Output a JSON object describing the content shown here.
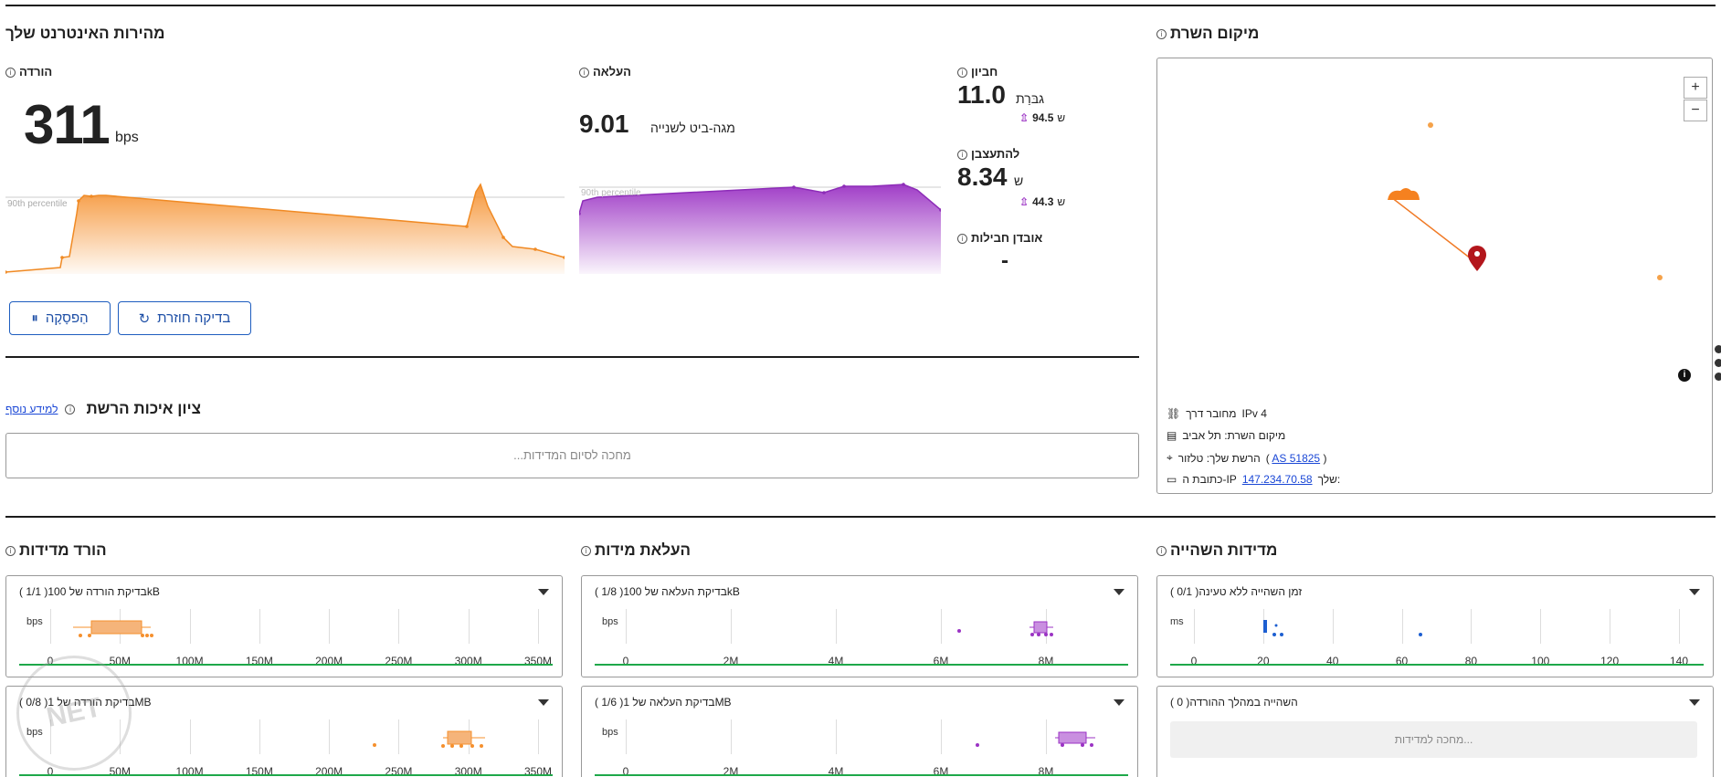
{
  "speed": {
    "title": "מהירות האינטרנט שלך",
    "download": {
      "label": "הורדה",
      "value": "311",
      "unit": "bps"
    },
    "upload": {
      "label": "העלאה",
      "value": "9.01",
      "unit": "מגה-ביט לשנייה"
    },
    "latency": {
      "label": "חביון",
      "value": "11.0",
      "unit": "גבּרַת",
      "loaded_value": "94.5",
      "loaded_unit": "ש"
    },
    "jitter": {
      "label": "להתעצבן",
      "value": "8.34",
      "unit": "ש",
      "loaded_value": "44.3",
      "loaded_unit": "ש"
    },
    "packet_loss": {
      "label": "אובדן חבילות",
      "value": "-"
    },
    "percentile_label": "90th percentile",
    "buttons": {
      "pause": "הַפסָקָה",
      "retest": "בדיקה חוזרת"
    }
  },
  "network_quality": {
    "title": "ציון איכות הרשת",
    "more_info": "למידע נוסף",
    "waiting": "...מחכה לסיום המדידות"
  },
  "server": {
    "title": "מיקום השרת",
    "zoom_in": "+",
    "zoom_out": "−",
    "connected_via": "מחובר דרך",
    "ip_version": "IPv 4",
    "server_location": "מיקום השרת: תל אביב",
    "network_label": "הרשת שלך: טלזור",
    "network_as": "AS 51825",
    "ip_label_pre": "כתובת ה-IP",
    "ip_label_post": "שלך:",
    "ip_value": "147.234.70.58"
  },
  "sections": {
    "download_measurements": "הורד מדידות",
    "upload_measurements": "העלאת מידות",
    "latency_measurements": "מדידות השהייה"
  },
  "cards": {
    "dl100k": {
      "title": "( 1/1 )בדיקת הורדה של 100kB",
      "unit": "bps",
      "ticks": [
        "0",
        "50M",
        "100M",
        "150M",
        "200M",
        "250M",
        "300M",
        "350M"
      ]
    },
    "dl1m": {
      "title": "( 0/8 )בדיקת הורדה של 1MB",
      "unit": "bps",
      "ticks": [
        "0",
        "50M",
        "100M",
        "150M",
        "200M",
        "250M",
        "300M",
        "350M"
      ]
    },
    "ul100k": {
      "title": "( 1/8 )בדיקת העלאה של 100kB",
      "unit": "bps",
      "ticks": [
        "0",
        "2M",
        "4M",
        "6M",
        "8M"
      ]
    },
    "ul1m": {
      "title": "( 1/6 )בדיקת העלאה של 1MB",
      "unit": "bps",
      "ticks": [
        "0",
        "2M",
        "4M",
        "6M",
        "8M"
      ]
    },
    "lat_unloaded": {
      "title": "( 0/1 )זמן השהייה ללא טעינה",
      "unit": "ms",
      "ticks": [
        "0",
        "20",
        "40",
        "60",
        "80",
        "100",
        "120",
        "140"
      ]
    },
    "lat_download": {
      "title": "( 0 )השהייה במהלך ההורדה",
      "waiting": "...מחכה למדידות"
    }
  },
  "colors": {
    "download": "#f5902e",
    "upload": "#9b33c4",
    "latency": "#1d5fd1",
    "good": "#1ea84a",
    "server_pin": "#b3161c"
  },
  "watermark": "NET"
}
